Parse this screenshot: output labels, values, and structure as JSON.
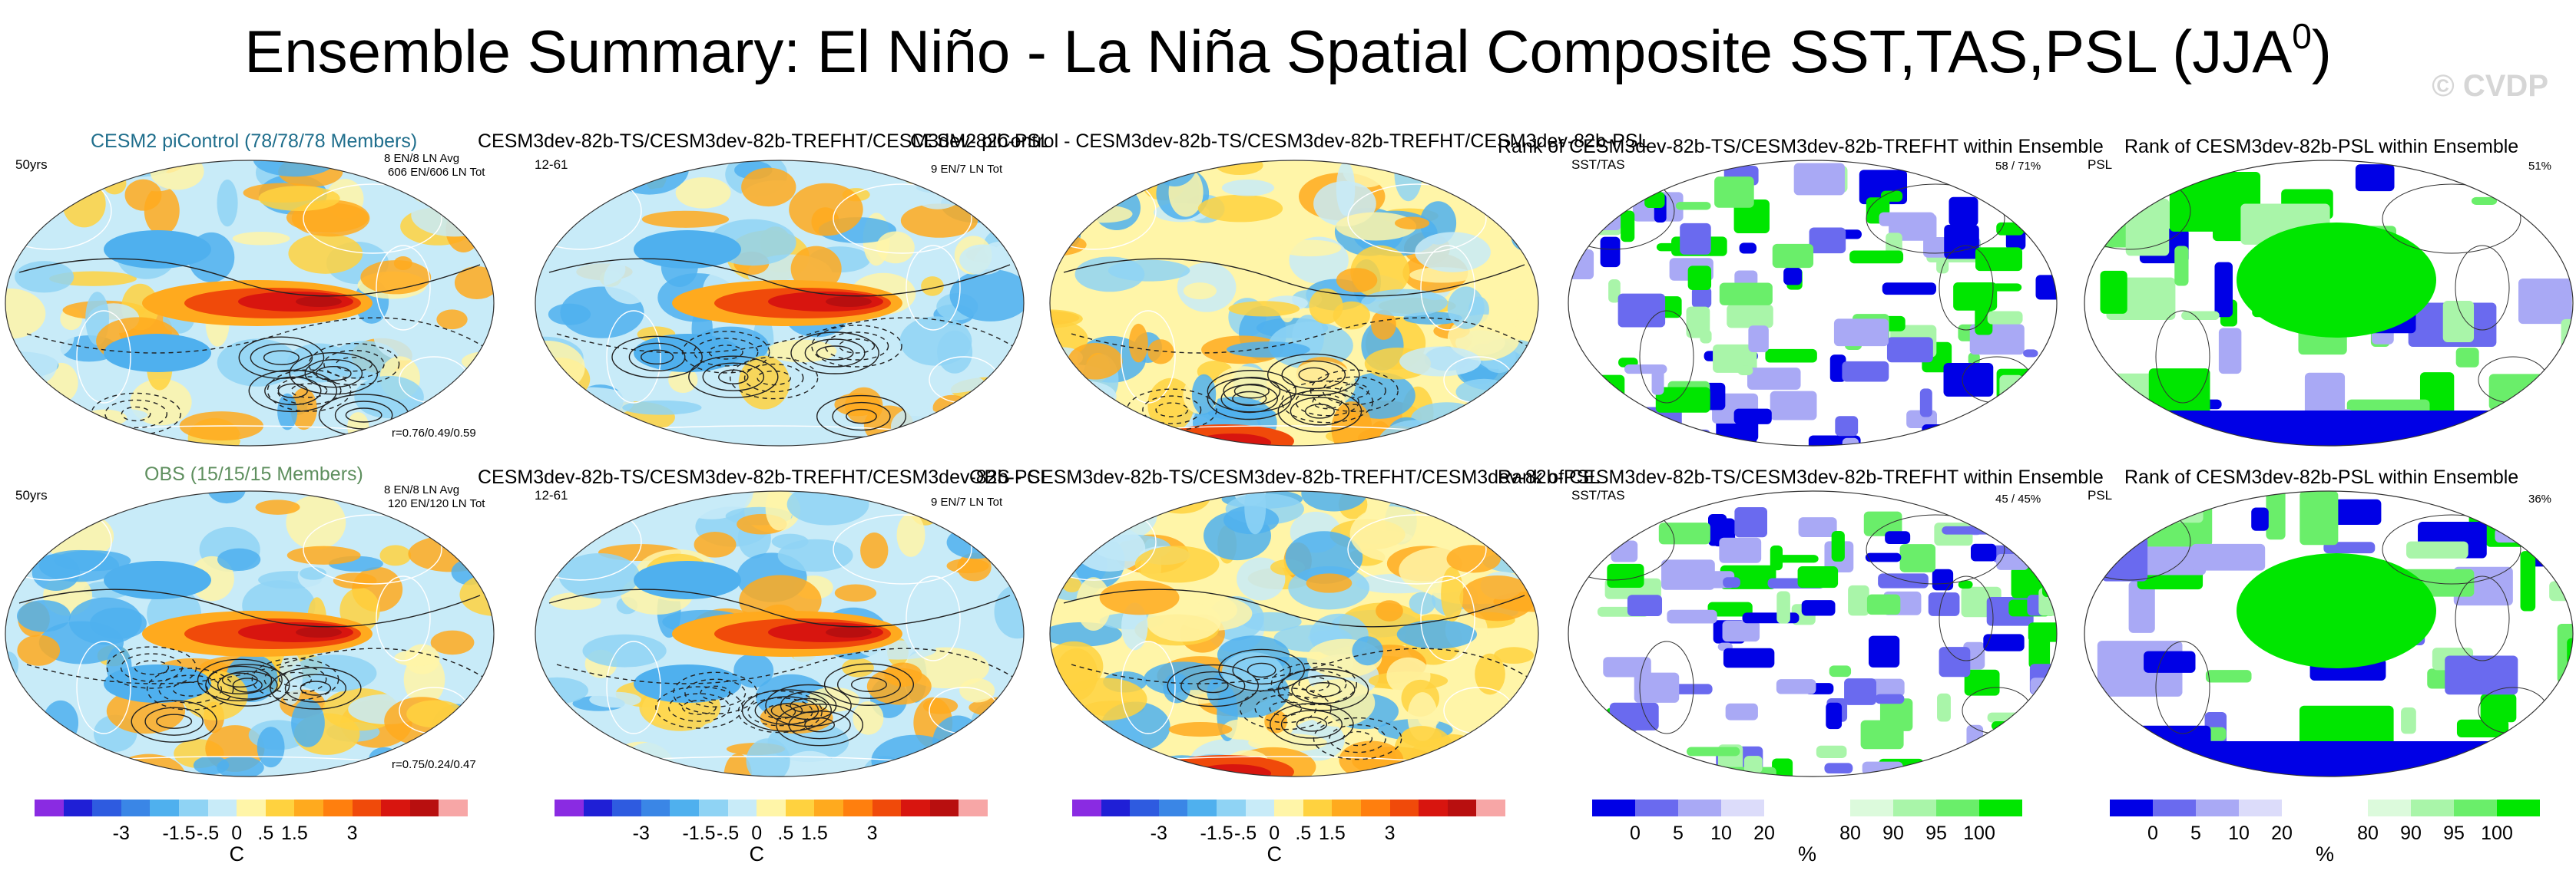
{
  "title": {
    "main": "Ensemble Summary: El Niño - La Niña Spatial Composite SST,TAS,PSL (JJA",
    "sup": "0",
    "close": ")"
  },
  "watermark": "© CVDP",
  "rows": [
    {
      "panels": [
        {
          "title": "CESM2 piControl (78/78/78 Members)",
          "title_color": "#1f6e8c",
          "left_label": "50yrs",
          "right_top_1": "8 EN/8 LN Avg",
          "right_top_2": "606 EN/606 LN Tot",
          "bottom_right": "r=0.76/0.49/0.59"
        },
        {
          "title": "CESM3dev-82b-TS/CESM3dev-82b-TREFHT/CESM3dev-82b-PSL",
          "left_label": "12-61",
          "right_top_1": "9 EN/7 LN Tot"
        },
        {
          "title": "CESM2 piControl - CESM3dev-82b-TS/CESM3dev-82b-TREFHT/CESM3dev-82b-PSL"
        },
        {
          "title": "Rank of CESM3dev-82b-TS/CESM3dev-82b-TREFHT within Ensemble",
          "left_label": "SST/TAS",
          "right_top_1": "58 /  71%"
        },
        {
          "title": "Rank of CESM3dev-82b-PSL within Ensemble",
          "left_label": "PSL",
          "right_top_1": "51%"
        }
      ]
    },
    {
      "panels": [
        {
          "title": "OBS (15/15/15 Members)",
          "title_color": "#5e8f5e",
          "left_label": "50yrs",
          "right_top_1": "8 EN/8 LN Avg",
          "right_top_2": "120 EN/120 LN Tot",
          "bottom_right": "r=0.75/0.24/0.47"
        },
        {
          "title": "CESM3dev-82b-TS/CESM3dev-82b-TREFHT/CESM3dev-82b-PSL",
          "left_label": "12-61",
          "right_top_1": "9 EN/7 LN Tot"
        },
        {
          "title": "OBS - CESM3dev-82b-TS/CESM3dev-82b-TREFHT/CESM3dev-82b-PSL"
        },
        {
          "title": "Rank of CESM3dev-82b-TS/CESM3dev-82b-TREFHT within Ensemble",
          "left_label": "SST/TAS",
          "right_top_1": "45 /  45%"
        },
        {
          "title": "Rank of CESM3dev-82b-PSL within Ensemble",
          "left_label": "PSL",
          "right_top_1": "36%"
        }
      ]
    }
  ],
  "colorbars": {
    "temp": {
      "colors": [
        "#8a2be2",
        "#1f1fd6",
        "#2e5be0",
        "#3a86e6",
        "#4fb0ee",
        "#8fd3f4",
        "#c8ebf8",
        "#fff5a8",
        "#ffd23f",
        "#ffaa1e",
        "#ff7f0e",
        "#f04a0a",
        "#d8150f",
        "#b80f0f",
        "#f7a6a6"
      ],
      "labels": [
        "-3",
        "-1.5",
        "-.5",
        "0",
        ".5",
        "1.5",
        "3"
      ],
      "unit": "C"
    },
    "rank": {
      "colors": [
        "#0000e6",
        "#6a6aef",
        "#a9a9f5",
        "#dcdcfa",
        "#ffffff",
        "#ffffff",
        "#dcfadc",
        "#a9f5a9",
        "#6aee6a",
        "#00e600"
      ],
      "labels": [
        "0",
        "5",
        "10",
        "20",
        "80",
        "90",
        "95",
        "100"
      ],
      "unit": "%"
    }
  },
  "chart_data": [
    {
      "type": "heatmap",
      "title": "CESM2 piControl (78/78/78 Members)",
      "variables": [
        "SST",
        "TAS",
        "PSL"
      ],
      "units": "C",
      "pattern_correlation": [
        0.76,
        0.49,
        0.59
      ],
      "clim": [
        -3,
        3
      ]
    },
    {
      "type": "heatmap",
      "title": "CESM3dev-82b-TS/CESM3dev-82b-TREFHT/CESM3dev-82b-PSL",
      "units": "C",
      "clim": [
        -3,
        3
      ]
    },
    {
      "type": "heatmap",
      "title": "CESM2 piControl - CESM3dev-82b-TS/CESM3dev-82b-TREFHT/CESM3dev-82b-PSL",
      "units": "C",
      "clim": [
        -3,
        3
      ]
    },
    {
      "type": "heatmap",
      "title": "Rank of CESM3dev-82b-TS/CESM3dev-82b-TREFHT within Ensemble",
      "units": "%",
      "rank_percent": [
        58,
        71
      ]
    },
    {
      "type": "heatmap",
      "title": "Rank of CESM3dev-82b-PSL within Ensemble",
      "units": "%",
      "rank_percent": [
        51
      ]
    },
    {
      "type": "heatmap",
      "title": "OBS (15/15/15 Members)",
      "variables": [
        "SST",
        "TAS",
        "PSL"
      ],
      "units": "C",
      "pattern_correlation": [
        0.75,
        0.24,
        0.47
      ],
      "clim": [
        -3,
        3
      ]
    },
    {
      "type": "heatmap",
      "title": "OBS - CESM3dev-82b-TS/CESM3dev-82b-TREFHT/CESM3dev-82b-PSL",
      "units": "C",
      "clim": [
        -3,
        3
      ]
    },
    {
      "type": "heatmap",
      "title": "Rank of CESM3dev-82b-TS/CESM3dev-82b-TREFHT within Ensemble",
      "units": "%",
      "rank_percent": [
        45,
        45
      ]
    },
    {
      "type": "heatmap",
      "title": "Rank of CESM3dev-82b-PSL within Ensemble",
      "units": "%",
      "rank_percent": [
        36
      ]
    }
  ]
}
